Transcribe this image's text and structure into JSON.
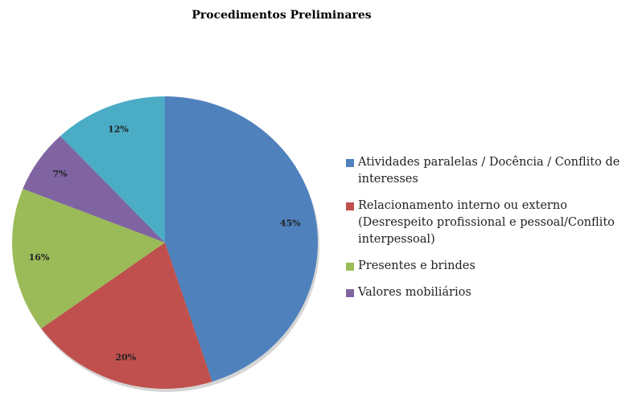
{
  "chart_data": {
    "type": "pie",
    "title": "Procedimentos Preliminares",
    "categories": [
      "Atividades paralelas / Docência / Conflito de interesses",
      "Relacionamento interno ou externo (Desrespeito profissional e pessoal/Conflito interpessoal)",
      "Presentes e brindes",
      "Valores mobiliários",
      null
    ],
    "values": [
      45,
      20,
      16,
      7,
      12
    ],
    "value_labels": [
      "45%",
      "20%",
      "16%",
      "7%",
      "12%"
    ],
    "colors": [
      "#4f81bd",
      "#c0504d",
      "#9bbb59",
      "#8064a2",
      "#4bacc6"
    ],
    "legend": "right"
  }
}
